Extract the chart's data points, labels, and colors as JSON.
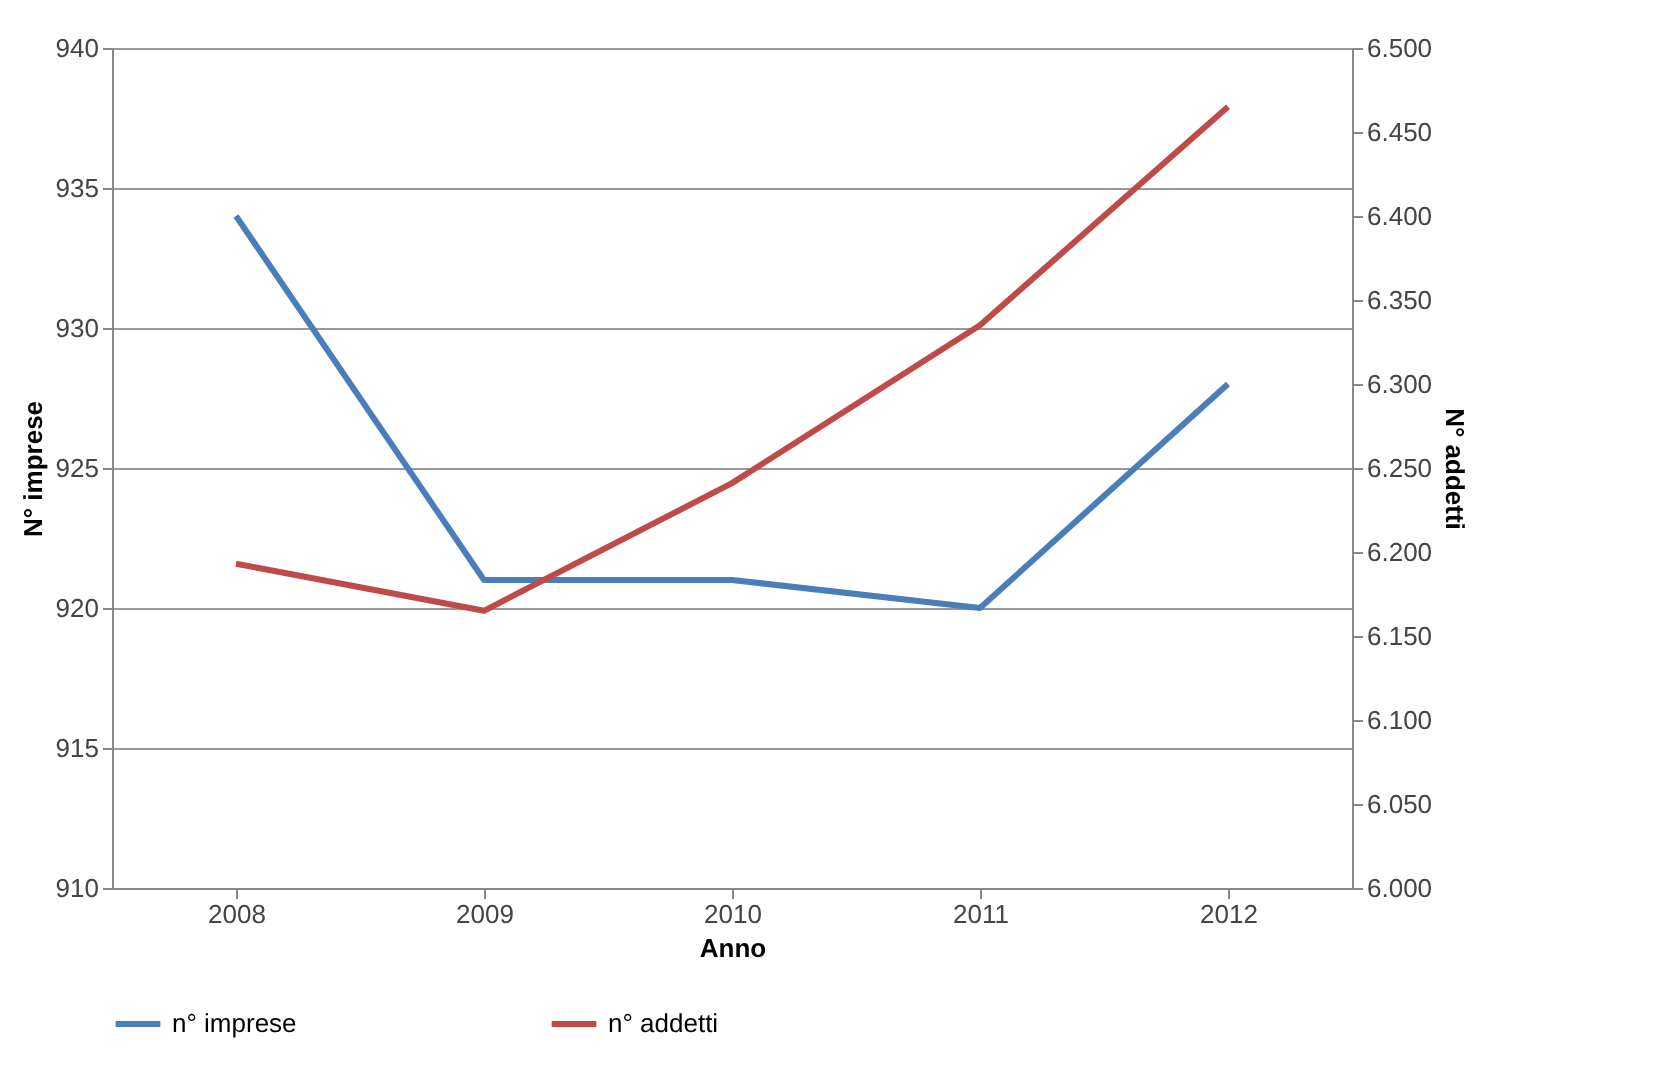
{
  "chart_data": {
    "type": "line",
    "xlabel": "Anno",
    "ylabel": "N° imprese",
    "y2label": "N° addetti",
    "categories": [
      "2008",
      "2009",
      "2010",
      "2011",
      "2012"
    ],
    "series": [
      {
        "name": "n° imprese",
        "color": "#4a7ebb",
        "values": [
          934,
          921,
          921,
          920,
          928
        ]
      },
      {
        "name": "n° addetti",
        "color": "#be4b48",
        "axis": "y2",
        "values": [
          6193,
          6165,
          6241,
          6335,
          6465
        ]
      }
    ],
    "ylim": [
      910,
      940
    ],
    "yticks": [
      910,
      915,
      920,
      925,
      930,
      935,
      940
    ],
    "y2lim": [
      6000,
      6500
    ],
    "y2ticks": [
      {
        "value": 6000,
        "label": "6.000"
      },
      {
        "value": 6050,
        "label": "6.050"
      },
      {
        "value": 6100,
        "label": "6.100"
      },
      {
        "value": 6150,
        "label": "6.150"
      },
      {
        "value": 6200,
        "label": "6.200"
      },
      {
        "value": 6250,
        "label": "6.250"
      },
      {
        "value": 6300,
        "label": "6.300"
      },
      {
        "value": 6350,
        "label": "6.350"
      },
      {
        "value": 6400,
        "label": "6.400"
      },
      {
        "value": 6450,
        "label": "6.450"
      },
      {
        "value": 6500,
        "label": "6.500"
      }
    ],
    "grid": "y",
    "legend": "bottom",
    "marker": "none",
    "line_style": "solid"
  }
}
